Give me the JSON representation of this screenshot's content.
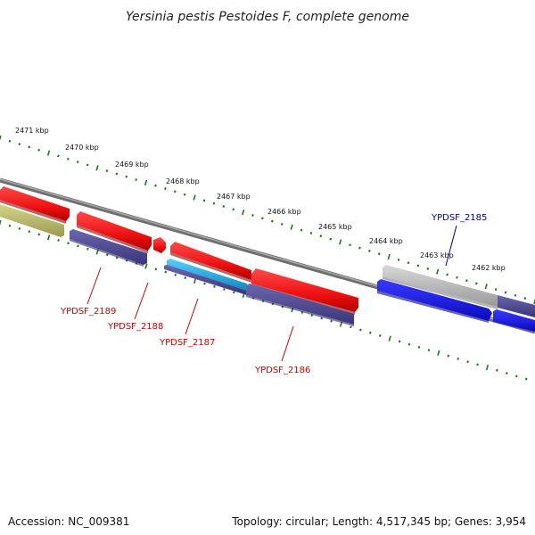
{
  "title": "Yersinia pestis Pestoides F, complete genome",
  "footer": {
    "accession": "Accession: NC_009381",
    "summary": "Topology: circular; Length: 4,517,345 bp; Genes: 3,954"
  },
  "ruler": {
    "ticks": [
      "2471 kbp",
      "2470 kbp",
      "2469 kbp",
      "2468 kbp",
      "2467 kbp",
      "2466 kbp",
      "2465 kbp",
      "2464 kbp",
      "2463 kbp",
      "2462 kbp"
    ],
    "tick_color": "#1a7a1a"
  },
  "genes": [
    {
      "id": "YPDSF_2189",
      "color": "#cc0000"
    },
    {
      "id": "YPDSF_2188",
      "color": "#cc0000"
    },
    {
      "id": "YPDSF_2187",
      "color": "#cc0000"
    },
    {
      "id": "YPDSF_2186",
      "color": "#cc0000"
    },
    {
      "id": "YPDSF_2185",
      "color": "#000099"
    }
  ],
  "colors": {
    "forward_cds": "#ee1111",
    "reverse_cds": "#4a4490",
    "rna_feature": "#22aadd",
    "pseudo_feature": "#bbbb66",
    "hypothetical": "#b0b0b0",
    "selected_cds": "#1111dd",
    "backbone": "#888888"
  }
}
